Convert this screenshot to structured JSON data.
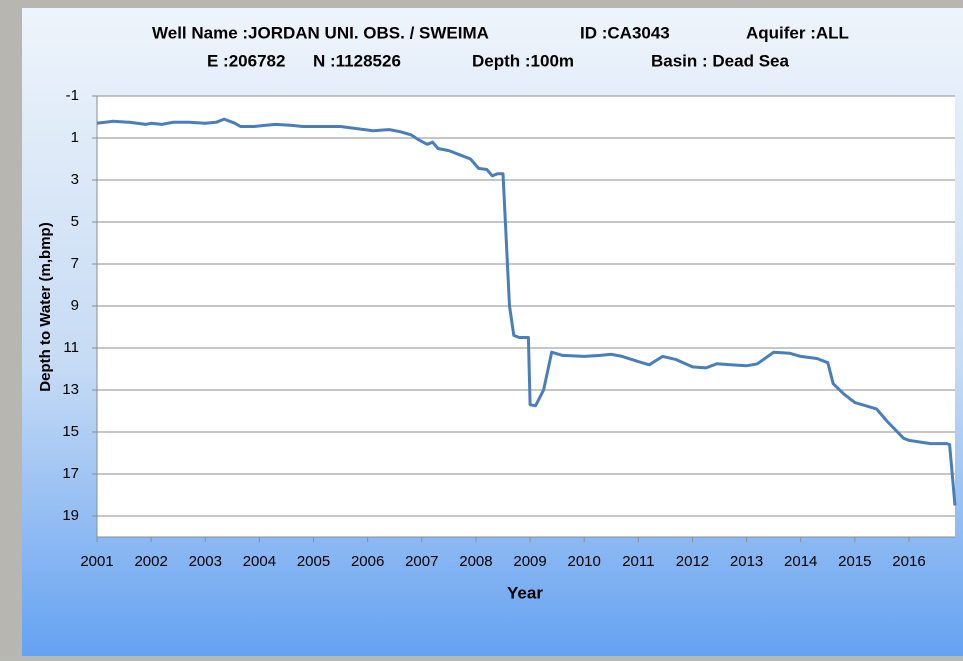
{
  "chart_data": {
    "type": "line",
    "title_lines": [
      [
        "Well Name :JORDAN UNI. OBS. / SWEIMA",
        "ID :CA3043",
        "Aquifer :ALL"
      ],
      [
        "E :206782",
        "N :1128526",
        "Depth :100m",
        "Basin : Dead Sea"
      ]
    ],
    "x_label": "Year",
    "y_label": "Depth to Water (m,bmp)",
    "x": [
      2001.0,
      2001.3,
      2001.6,
      2001.9,
      2002.0,
      2002.2,
      2002.4,
      2002.7,
      2003.0,
      2003.2,
      2003.35,
      2003.55,
      2003.65,
      2003.9,
      2004.1,
      2004.3,
      2004.6,
      2004.8,
      2005.2,
      2005.5,
      2005.8,
      2006.1,
      2006.4,
      2006.6,
      2006.8,
      2006.95,
      2007.1,
      2007.2,
      2007.3,
      2007.5,
      2007.7,
      2007.9,
      2008.05,
      2008.2,
      2008.3,
      2008.4,
      2008.5,
      2008.62,
      2008.7,
      2008.8,
      2008.97,
      2009.0,
      2009.1,
      2009.25,
      2009.4,
      2009.6,
      2010.0,
      2010.3,
      2010.5,
      2010.7,
      2011.0,
      2011.2,
      2011.45,
      2011.7,
      2012.0,
      2012.25,
      2012.45,
      2012.7,
      2013.0,
      2013.2,
      2013.5,
      2013.8,
      2014.0,
      2014.3,
      2014.5,
      2014.6,
      2014.8,
      2015.0,
      2015.4,
      2015.6,
      2015.9,
      2016.0,
      2016.4,
      2016.7,
      2016.75,
      2016.85
    ],
    "series": [
      {
        "name": "Depth to Water",
        "color": "#4a7ebb",
        "values": [
          0.3,
          0.2,
          0.25,
          0.35,
          0.3,
          0.35,
          0.25,
          0.25,
          0.3,
          0.25,
          0.1,
          0.3,
          0.45,
          0.45,
          0.4,
          0.35,
          0.4,
          0.45,
          0.45,
          0.45,
          0.55,
          0.65,
          0.6,
          0.7,
          0.85,
          1.1,
          1.3,
          1.2,
          1.5,
          1.6,
          1.8,
          2.0,
          2.45,
          2.5,
          2.8,
          2.7,
          2.7,
          9.0,
          10.4,
          10.5,
          10.5,
          13.7,
          13.75,
          13.0,
          11.2,
          11.35,
          11.4,
          11.35,
          11.3,
          11.4,
          11.65,
          11.8,
          11.4,
          11.55,
          11.9,
          11.95,
          11.75,
          11.8,
          11.85,
          11.75,
          11.2,
          11.25,
          11.4,
          11.5,
          11.7,
          12.7,
          13.2,
          13.6,
          13.9,
          14.5,
          15.3,
          15.4,
          15.55,
          15.55,
          15.6,
          18.5
        ]
      }
    ],
    "xlim": [
      2001,
      2016.85
    ],
    "xticks": [
      2001,
      2002,
      2003,
      2004,
      2005,
      2006,
      2007,
      2008,
      2009,
      2010,
      2011,
      2012,
      2013,
      2014,
      2015,
      2016
    ],
    "ylim": [
      -1,
      20
    ],
    "yticks": [
      -1,
      1,
      3,
      5,
      7,
      9,
      11,
      13,
      15,
      17,
      19
    ],
    "y_inverted": true,
    "grid": true
  }
}
